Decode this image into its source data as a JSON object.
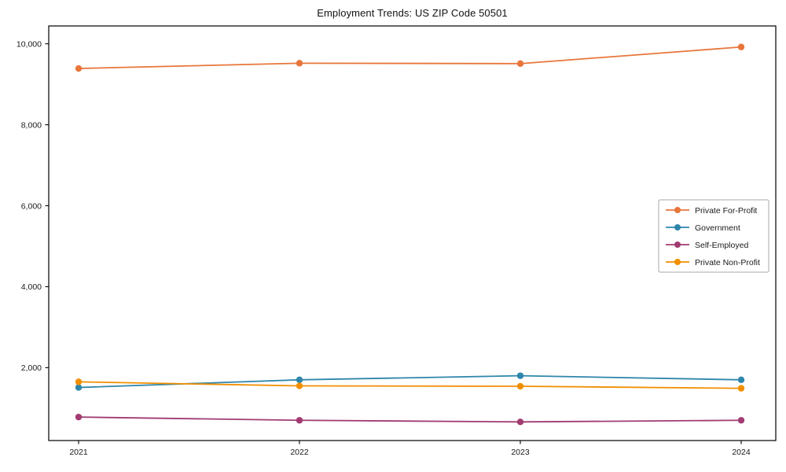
{
  "chart_data": {
    "type": "line",
    "title": "Employment Trends: US ZIP Code 50501",
    "x": [
      2021,
      2022,
      2023,
      2024
    ],
    "x_labels": [
      "2021",
      "2022",
      "2023",
      "2024"
    ],
    "series": [
      {
        "name": "Private For-Profit",
        "color": "#E8763B",
        "values": [
          9390,
          9520,
          9510,
          9920
        ]
      },
      {
        "name": "Government",
        "color": "#2E86AB",
        "values": [
          1510,
          1700,
          1800,
          1700
        ]
      },
      {
        "name": "Self-Employed",
        "color": "#A23B72",
        "values": [
          780,
          700,
          660,
          700
        ]
      },
      {
        "name": "Private Non-Profit",
        "color": "#F18F01",
        "values": [
          1650,
          1550,
          1540,
          1490
        ]
      }
    ],
    "yticks": [
      2000,
      4000,
      6000,
      8000,
      10000
    ],
    "ytick_labels": [
      "2,000",
      "4,000",
      "6,000",
      "8,000",
      "10,000"
    ],
    "ylim": [
      200,
      10440
    ],
    "xlabel": "",
    "ylabel": "",
    "grid": false,
    "marker": "circle",
    "legend_position": "center-right",
    "legend_border_color": "#aaaaaa",
    "axis_color": "#000000",
    "text_color": "#1a1a1a",
    "background": "#ffffff"
  }
}
